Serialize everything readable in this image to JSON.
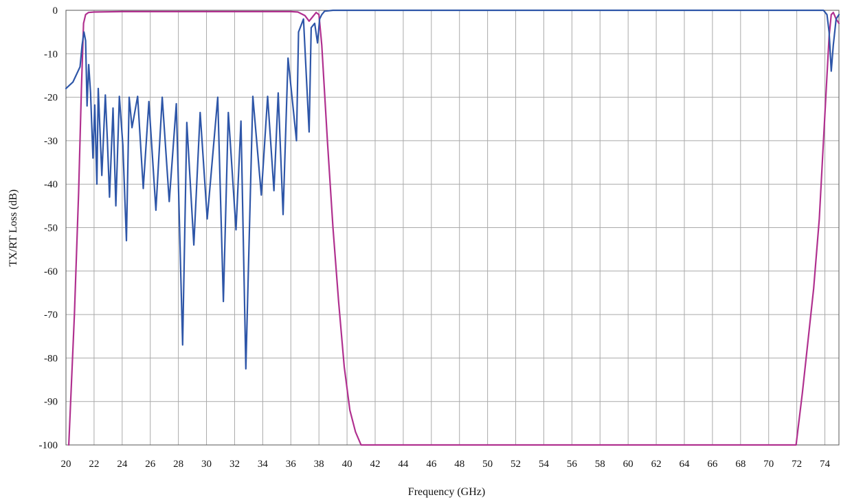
{
  "chart_data": {
    "type": "line",
    "title": "",
    "xlabel": "Frequency (GHz)",
    "ylabel": "TX/RT Loss (dB)",
    "xlim": [
      20,
      75
    ],
    "ylim": [
      -100,
      0
    ],
    "x_ticks": [
      "20",
      "22",
      "24",
      "26",
      "28",
      "30",
      "32",
      "34",
      "36",
      "38",
      "40",
      "42",
      "44",
      "46",
      "48",
      "50",
      "52",
      "54",
      "56",
      "58",
      "60",
      "62",
      "64",
      "66",
      "68",
      "70",
      "72",
      "74"
    ],
    "y_ticks": [
      "0",
      "-10",
      "-20",
      "-30",
      "-40",
      "-50",
      "-60",
      "-70",
      "-80",
      "-90",
      "-100"
    ],
    "grid": true,
    "legend": "none",
    "series": [
      {
        "color": "#b0308f",
        "x": [
          20.2,
          20.6,
          20.9,
          21.1,
          21.25,
          21.4,
          21.6,
          22,
          24,
          26,
          28,
          30,
          32,
          34,
          35,
          36,
          36.5,
          37,
          37.3,
          37.55,
          37.8,
          38,
          38.2,
          38.6,
          39,
          39.4,
          39.8,
          40.2,
          40.6,
          41.0,
          71.95,
          72.4,
          72.8,
          73.2,
          73.6,
          73.9,
          74.15,
          74.3,
          74.45,
          74.6,
          74.8,
          75.0
        ],
        "y": [
          -100,
          -70,
          -42,
          -18,
          -3,
          -1,
          -0.5,
          -0.4,
          -0.3,
          -0.3,
          -0.3,
          -0.3,
          -0.3,
          -0.3,
          -0.3,
          -0.3,
          -0.4,
          -1.2,
          -2.5,
          -1.5,
          -0.5,
          -1,
          -8,
          -30,
          -50,
          -67,
          -82,
          -92,
          -97,
          -100,
          -100,
          -88,
          -76,
          -64,
          -48,
          -30,
          -15,
          -6,
          -1,
          -0.5,
          -2,
          -3
        ]
      },
      {
        "color": "#2e56a8",
        "x": [
          20,
          20.5,
          21,
          21.15,
          21.28,
          21.4,
          21.5,
          21.62,
          21.75,
          21.92,
          22.05,
          22.2,
          22.3,
          22.55,
          22.8,
          22.95,
          23.1,
          23.35,
          23.55,
          23.8,
          24.05,
          24.3,
          24.5,
          24.7,
          25.1,
          25.5,
          25.9,
          26.4,
          26.85,
          27.35,
          27.85,
          28.3,
          28.6,
          29.1,
          29.55,
          30.05,
          30.8,
          31.2,
          31.55,
          32.1,
          32.45,
          32.8,
          33.3,
          33.9,
          34.35,
          34.8,
          35.1,
          35.45,
          35.8,
          36.4,
          36.55,
          36.9,
          37.3,
          37.45,
          37.7,
          37.9,
          38.05,
          38.2,
          38.4,
          39,
          45,
          55,
          65,
          73.9,
          74.15,
          74.3,
          74.45,
          74.6,
          74.8,
          75.0
        ],
        "y": [
          -18,
          -16.5,
          -13,
          -8,
          -5,
          -7,
          -22,
          -12.5,
          -19,
          -34,
          -21.8,
          -40,
          -18,
          -38,
          -19.5,
          -30,
          -43,
          -22.5,
          -45,
          -19.8,
          -31,
          -53,
          -20,
          -27,
          -19.8,
          -41,
          -21,
          -46,
          -20,
          -44,
          -21.5,
          -77,
          -25.8,
          -54,
          -23.5,
          -48,
          -20,
          -67,
          -23.5,
          -50.5,
          -25.5,
          -82.5,
          -19.8,
          -42.5,
          -19.8,
          -41.5,
          -19,
          -47,
          -11,
          -30,
          -5,
          -2,
          -28,
          -4,
          -3,
          -7.5,
          -2,
          -1,
          -0.2,
          0,
          0,
          0,
          0,
          0,
          -1,
          -5,
          -14,
          -8,
          -2,
          -1
        ]
      }
    ]
  }
}
